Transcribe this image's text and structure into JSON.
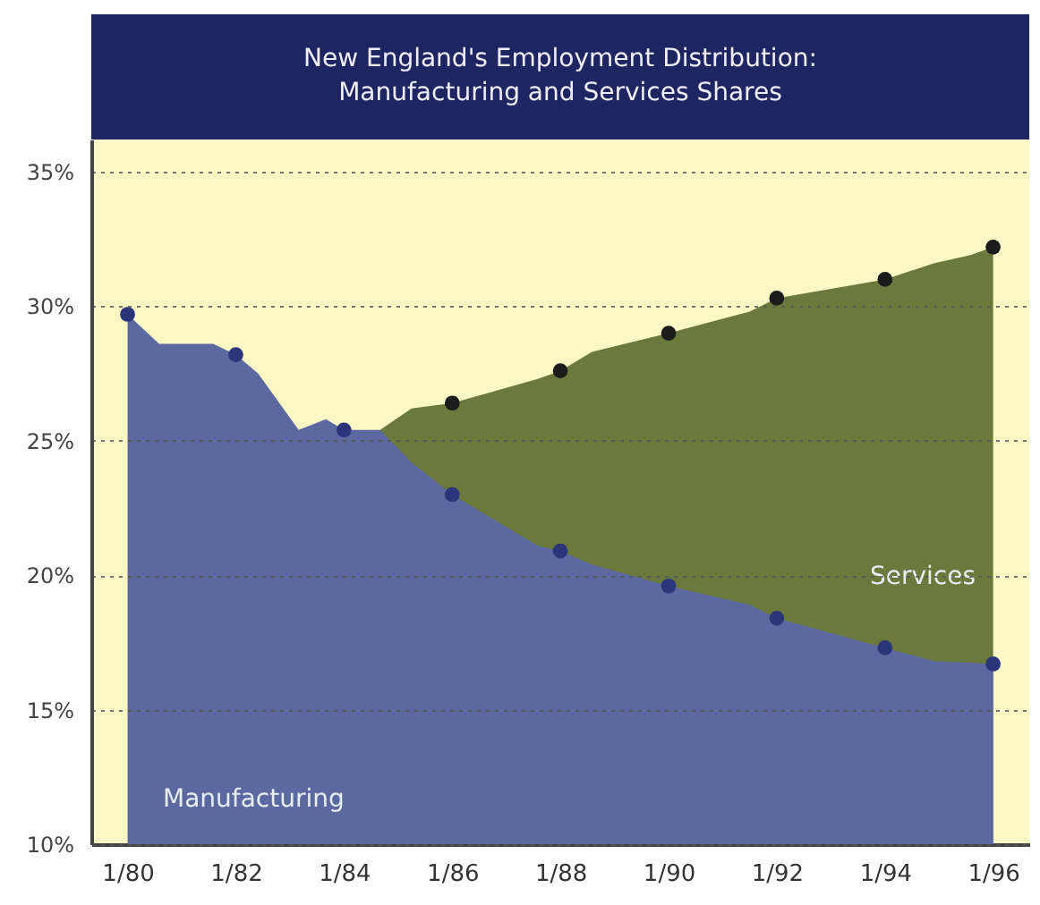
{
  "chart_data": {
    "type": "area",
    "title": "New England's Employment Distribution:\nManufacturing and Services Shares",
    "x": [
      "1980-01",
      "1980-08",
      "1981-08",
      "1982-01",
      "1982-06",
      "1983-03",
      "1983-09",
      "1984-01",
      "1984-09",
      "1985-04",
      "1986-01",
      "1987-08",
      "1988-01",
      "1988-08",
      "1990-01",
      "1991-07",
      "1992-01",
      "1994-01",
      "1994-12",
      "1995-08",
      "1996-01"
    ],
    "series": [
      {
        "name": "Services",
        "color": "#6b7a3c",
        "values": [
          null,
          null,
          null,
          null,
          null,
          null,
          null,
          null,
          25.4,
          26.2,
          26.4,
          27.3,
          27.6,
          28.3,
          29.0,
          29.8,
          30.3,
          31.0,
          31.6,
          31.9,
          32.2
        ]
      },
      {
        "name": "Manufacturing",
        "color": "#5b69a0",
        "values": [
          29.7,
          28.6,
          28.6,
          28.2,
          27.5,
          25.4,
          25.8,
          25.4,
          25.4,
          24.2,
          23.0,
          21.1,
          20.9,
          20.4,
          19.6,
          18.9,
          18.4,
          17.3,
          16.8,
          16.75,
          16.7
        ]
      },
      {
        "type": "scatter",
        "marker": "circle",
        "color": "#1c1c1c",
        "x": [
          "1986-01",
          "1988-01",
          "1990-01",
          "1992-01",
          "1994-01",
          "1996-01"
        ],
        "values": [
          26.4,
          27.6,
          29.0,
          30.3,
          31.0,
          32.2
        ]
      },
      {
        "type": "scatter",
        "marker": "circle",
        "color": "#2a357a",
        "x": [
          "1980-01",
          "1982-01",
          "1984-01",
          "1986-01",
          "1988-01",
          "1990-01",
          "1992-01",
          "1994-01",
          "1996-01"
        ],
        "values": [
          29.7,
          28.2,
          25.4,
          23.0,
          20.9,
          19.6,
          18.4,
          17.3,
          16.7
        ]
      }
    ],
    "xlim": [
      "1979-05",
      "1996-09"
    ],
    "xticks": [
      {
        "value": "1980-01",
        "label": "1/80"
      },
      {
        "value": "1982-01",
        "label": "1/82"
      },
      {
        "value": "1984-01",
        "label": "1/84"
      },
      {
        "value": "1986-01",
        "label": "1/86"
      },
      {
        "value": "1988-01",
        "label": "1/88"
      },
      {
        "value": "1990-01",
        "label": "1/90"
      },
      {
        "value": "1992-01",
        "label": "1/92"
      },
      {
        "value": "1994-01",
        "label": "1/94"
      },
      {
        "value": "1996-01",
        "label": "1/96"
      }
    ],
    "ylim": [
      10,
      36.2
    ],
    "yticks": [
      {
        "value": 10,
        "label": "10%"
      },
      {
        "value": 15,
        "label": "15%"
      },
      {
        "value": 20,
        "label": "20%"
      },
      {
        "value": 25,
        "label": "25%"
      },
      {
        "value": 30,
        "label": "30%"
      },
      {
        "value": 35,
        "label": "35%"
      }
    ],
    "grid": "y"
  }
}
